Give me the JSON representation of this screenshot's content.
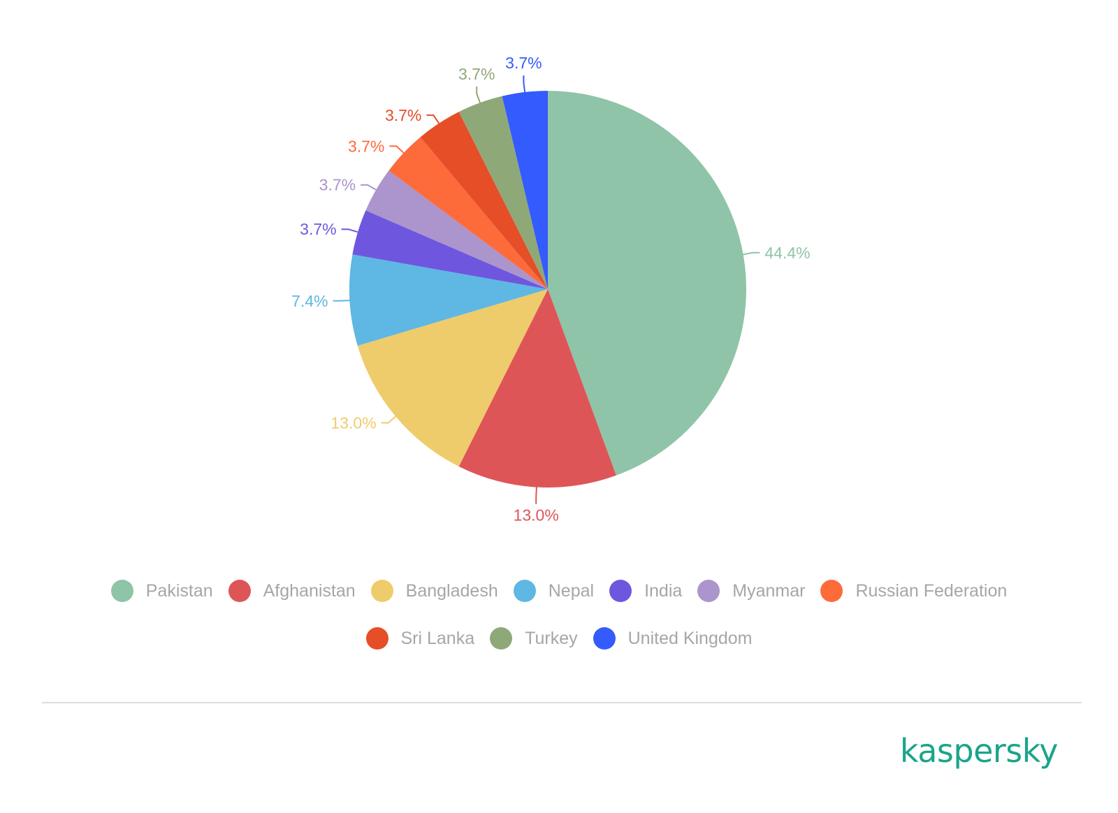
{
  "chart_data": {
    "type": "pie",
    "slices": [
      {
        "name": "Pakistan",
        "value": 44.4,
        "label": "44.4%",
        "color": "#8fc4a8"
      },
      {
        "name": "Afghanistan",
        "value": 13.0,
        "label": "13.0%",
        "color": "#de5558"
      },
      {
        "name": "Bangladesh",
        "value": 13.0,
        "label": "13.0%",
        "color": "#eecc6b"
      },
      {
        "name": "Nepal",
        "value": 7.4,
        "label": "7.4%",
        "color": "#5fb7e4"
      },
      {
        "name": "India",
        "value": 3.7,
        "label": "3.7%",
        "color": "#6e57de"
      },
      {
        "name": "Myanmar",
        "value": 3.7,
        "label": "3.7%",
        "color": "#ac94cc"
      },
      {
        "name": "Russian Federation",
        "value": 3.7,
        "label": "3.7%",
        "color": "#fe6b3b"
      },
      {
        "name": "Sri Lanka",
        "value": 3.7,
        "label": "3.7%",
        "color": "#e54e27"
      },
      {
        "name": "Turkey",
        "value": 3.7,
        "label": "3.7%",
        "color": "#8fa878"
      },
      {
        "name": "United Kingdom",
        "value": 3.7,
        "label": "3.7%",
        "color": "#335bfd"
      }
    ],
    "legend_position": "bottom"
  },
  "brand": {
    "name": "kaspersky",
    "color": "#1aa58a"
  }
}
